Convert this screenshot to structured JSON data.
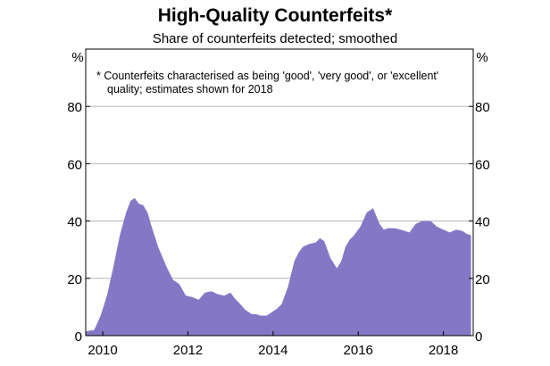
{
  "chart_data": {
    "type": "area",
    "title": "High-Quality Counterfeits*",
    "subtitle": "Share of counterfeits detected; smoothed",
    "footnote_lines": [
      "*  Counterfeits characterised as being 'good', 'very good', or 'excellent'",
      "quality; estimates shown for 2018"
    ],
    "y_unit_left": "%",
    "y_unit_right": "%",
    "ylim": [
      0,
      100
    ],
    "yticks": [
      0,
      20,
      40,
      60,
      80
    ],
    "ytick_labels": [
      "0",
      "20",
      "40",
      "60",
      "80"
    ],
    "xlim": [
      2009.6,
      2018.7
    ],
    "xticks": [
      2010,
      2012,
      2014,
      2016,
      2018
    ],
    "xtick_labels": [
      "2010",
      "2012",
      "2014",
      "2016",
      "2018"
    ],
    "grid": true,
    "fill_color": "#8478c6",
    "series": [
      {
        "x": [
          2009.6,
          2009.8,
          2009.95,
          2010.1,
          2010.25,
          2010.4,
          2010.55,
          2010.65,
          2010.75,
          2010.85,
          2010.95,
          2011.05,
          2011.15,
          2011.3,
          2011.5,
          2011.65,
          2011.8,
          2011.95,
          2012.1,
          2012.25,
          2012.4,
          2012.55,
          2012.7,
          2012.85,
          2013.0,
          2013.1,
          2013.2,
          2013.35,
          2013.5,
          2013.6,
          2013.7,
          2013.85,
          2014.0,
          2014.1,
          2014.2,
          2014.35,
          2014.5,
          2014.6,
          2014.7,
          2014.85,
          2015.0,
          2015.1,
          2015.2,
          2015.35,
          2015.5,
          2015.6,
          2015.7,
          2015.8,
          2015.9,
          2016.05,
          2016.2,
          2016.35,
          2016.5,
          2016.6,
          2016.7,
          2016.85,
          2017.0,
          2017.2,
          2017.35,
          2017.5,
          2017.7,
          2017.85,
          2018.0,
          2018.15,
          2018.3,
          2018.45,
          2018.55,
          2018.65
        ],
        "values": [
          1.5,
          2,
          7,
          14,
          24,
          35,
          43,
          47,
          48,
          46,
          45.5,
          43,
          38,
          31,
          24,
          19.5,
          18,
          14,
          13.5,
          12.5,
          15,
          15.5,
          14.5,
          14,
          15,
          13,
          11.5,
          9,
          7.5,
          7.5,
          7,
          7,
          8.5,
          9.5,
          11,
          17,
          26,
          29,
          31,
          32,
          32.5,
          34,
          33,
          27,
          23.5,
          26,
          31,
          33.5,
          35,
          38,
          43,
          44.5,
          39,
          37,
          37.5,
          37.5,
          37,
          36,
          39,
          40,
          40,
          38,
          37,
          36,
          37,
          36.5,
          35.5,
          35
        ]
      }
    ]
  }
}
